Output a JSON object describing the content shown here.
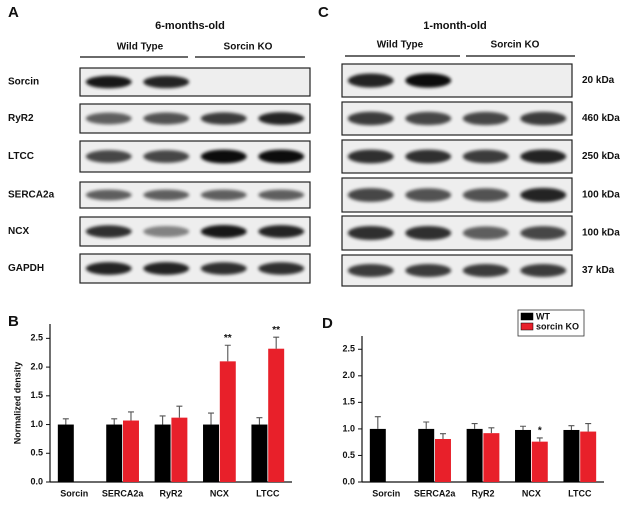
{
  "panel_labels": [
    "A",
    "B",
    "C",
    "D"
  ],
  "blot_a": {
    "title": "6-months-old",
    "groups": [
      "Wild Type",
      "Sorcin KO"
    ],
    "rows": [
      "Sorcin",
      "RyR2",
      "LTCC",
      "SERCA2a",
      "NCX",
      "GAPDH"
    ]
  },
  "blot_c": {
    "title": "1-month-old",
    "groups": [
      "Wild Type",
      "Sorcin KO"
    ],
    "sizes": [
      "20 kDa",
      "460 kDa",
      "250 kDa",
      "100 kDa",
      "100 kDa",
      "37 kDa"
    ]
  },
  "chart_data": [
    {
      "type": "bar",
      "y_label": "Normalized density",
      "categories": [
        "Sorcin",
        "SERCA2a",
        "RyR2",
        "NCX",
        "LTCC"
      ],
      "series": [
        {
          "color": "#000000",
          "values": [
            1.0,
            1.0,
            1.0,
            1.0,
            1.0
          ],
          "errors": [
            0.1,
            0.1,
            0.15,
            0.2,
            0.12
          ]
        },
        {
          "color": "#e8202a",
          "values": [
            null,
            1.07,
            1.12,
            2.1,
            2.32
          ],
          "errors": [
            null,
            0.15,
            0.2,
            0.28,
            0.2
          ]
        }
      ],
      "annotations": [
        {
          "text": "**",
          "series": 1,
          "index": 3
        },
        {
          "text": "**",
          "series": 1,
          "index": 4
        }
      ],
      "ylim": [
        0,
        2.75
      ],
      "yticks": [
        {
          "value": 0,
          "label": "0.0"
        },
        0.5,
        {
          "value": 1,
          "label": "1.0"
        },
        1.5,
        {
          "value": 2,
          "label": "2.0"
        },
        2.5
      ]
    },
    {
      "type": "bar",
      "categories": [
        "Sorcin",
        "SERCA2a",
        "RyR2",
        "NCX",
        "LTCC"
      ],
      "series": [
        {
          "name": "WT",
          "color": "#000000",
          "values": [
            1.0,
            1.0,
            1.0,
            0.98,
            0.98
          ],
          "errors": [
            0.23,
            0.13,
            0.1,
            0.07,
            0.08
          ]
        },
        {
          "name": "sorcin KO",
          "color": "#e8202a",
          "values": [
            null,
            0.81,
            0.92,
            0.76,
            0.95
          ],
          "errors": [
            null,
            0.1,
            0.1,
            0.07,
            0.15
          ]
        }
      ],
      "annotations": [
        {
          "text": "*",
          "series": 1,
          "index": 3
        }
      ],
      "legend": "top-right",
      "ylim": [
        0,
        2.75
      ],
      "yticks": [
        {
          "value": 0,
          "label": "0.0"
        },
        0.5,
        {
          "value": 1,
          "label": "1.0"
        },
        1.5,
        {
          "value": 2,
          "label": "2.0"
        },
        2.5
      ]
    }
  ]
}
